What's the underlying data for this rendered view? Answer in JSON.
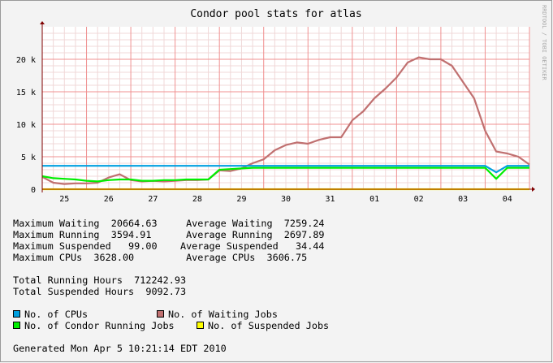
{
  "chart_data": {
    "type": "line",
    "title": "Condor pool stats for atlas",
    "categories": [
      null,
      null,
      "25",
      null,
      null,
      null,
      "26",
      null,
      null,
      null,
      "27",
      null,
      null,
      null,
      "28",
      null,
      null,
      null,
      "29",
      null,
      null,
      null,
      "30",
      null,
      null,
      null,
      "31",
      null,
      null,
      null,
      "01",
      null,
      null,
      null,
      "02",
      null,
      null,
      null,
      "03",
      null,
      null,
      null,
      "04",
      null,
      null
    ],
    "series": [
      {
        "name": "No. of CPUs",
        "color": "#00a0e0",
        "values": [
          3600,
          3600,
          3600,
          3600,
          3600,
          3600,
          3600,
          3600,
          3600,
          3600,
          3600,
          3600,
          3600,
          3600,
          3600,
          3600,
          3600,
          3600,
          3600,
          3600,
          3600,
          3600,
          3600,
          3600,
          3600,
          3600,
          3600,
          3600,
          3600,
          3600,
          3600,
          3600,
          3600,
          3600,
          3600,
          3600,
          3600,
          3600,
          3600,
          3600,
          3600,
          2600,
          3600,
          3600,
          3600
        ]
      },
      {
        "name": "No. of Waiting Jobs",
        "color": "#c07070",
        "values": [
          1900,
          1000,
          800,
          900,
          900,
          1000,
          1800,
          2300,
          1400,
          1200,
          1300,
          1200,
          1300,
          1400,
          1400,
          1500,
          2900,
          2800,
          3200,
          4000,
          4600,
          6000,
          6800,
          7200,
          7000,
          7600,
          8000,
          8000,
          10600,
          12000,
          14000,
          15500,
          17200,
          19500,
          20300,
          20000,
          20000,
          19000,
          16500,
          14000,
          9000,
          5800,
          5500,
          5000,
          3800
        ]
      },
      {
        "name": "No. of Condor Running Jobs",
        "color": "#00ee00",
        "values": [
          2000,
          1700,
          1600,
          1500,
          1300,
          1200,
          1400,
          1500,
          1500,
          1300,
          1300,
          1400,
          1400,
          1500,
          1500,
          1500,
          3000,
          3100,
          3200,
          3300,
          3300,
          3300,
          3300,
          3300,
          3300,
          3300,
          3300,
          3300,
          3300,
          3300,
          3300,
          3300,
          3300,
          3300,
          3300,
          3300,
          3300,
          3300,
          3300,
          3300,
          3300,
          1600,
          3300,
          3300,
          3300
        ]
      },
      {
        "name": "No. of Suspended Jobs",
        "color": "#ffff00",
        "values": [
          0,
          0,
          0,
          0,
          0,
          0,
          0,
          0,
          0,
          0,
          0,
          0,
          0,
          0,
          0,
          0,
          0,
          0,
          0,
          0,
          0,
          0,
          0,
          0,
          0,
          0,
          0,
          0,
          0,
          0,
          0,
          0,
          0,
          0,
          0,
          0,
          0,
          0,
          0,
          0,
          0,
          0,
          0,
          0,
          0
        ]
      }
    ],
    "ylim": [
      0,
      25000
    ],
    "yticks": [
      0,
      {
        "value": 5000,
        "label": "5 k"
      },
      {
        "value": 10000,
        "label": "10 k"
      },
      {
        "value": 15000,
        "label": "15 k"
      },
      {
        "value": 20000,
        "label": "20 k"
      }
    ],
    "grid": true,
    "watermark": "RRDTOOL / TOBI OETIKER"
  },
  "stats_lines": [
    "Maximum Waiting  20664.63     Average Waiting  7259.24",
    "Maximum Running  3594.91      Average Running  2697.89",
    "Maximum Suspended   99.00    Average Suspended   34.44",
    "Maximum CPUs  3628.00         Average CPUs  3606.75"
  ],
  "totals_lines": [
    "Total Running Hours  712242.93",
    "Total Suspended Hours  9092.73"
  ],
  "footer": "Generated Mon Apr 5 10:21:14 EDT 2010"
}
